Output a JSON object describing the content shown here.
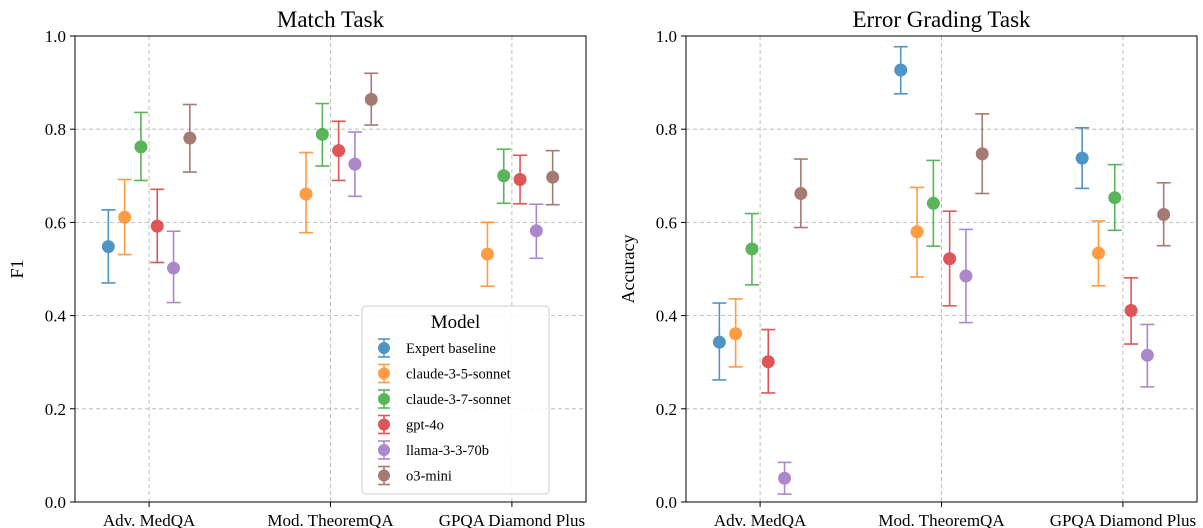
{
  "chart_data": [
    {
      "type": "scatter",
      "title": "Match Task",
      "xlabel": "",
      "ylabel": "F1",
      "ylim": [
        0.0,
        1.0
      ],
      "yticks": [
        "0.0",
        "0.2",
        "0.4",
        "0.6",
        "0.8",
        "1.0"
      ],
      "categories": [
        "Adv. MedQA",
        "Mod. TheoremQA",
        "GPQA Diamond Plus"
      ],
      "grid": true,
      "legend": {
        "title": "Model",
        "placement": "lower-right",
        "entries": [
          "Expert baseline",
          "claude-3-5-sonnet",
          "claude-3-7-sonnet",
          "gpt-4o",
          "llama-3-3-70b",
          "o3-mini"
        ]
      },
      "series": [
        {
          "name": "Expert baseline",
          "color": "#1f77b4",
          "points": [
            {
              "category": "Adv. MedQA",
              "y": 0.548,
              "low": 0.47,
              "high": 0.627
            }
          ]
        },
        {
          "name": "claude-3-5-sonnet",
          "color": "#ff7f0e",
          "points": [
            {
              "category": "Adv. MedQA",
              "y": 0.611,
              "low": 0.531,
              "high": 0.692
            },
            {
              "category": "Mod. TheoremQA",
              "y": 0.661,
              "low": 0.578,
              "high": 0.75
            },
            {
              "category": "GPQA Diamond Plus",
              "y": 0.532,
              "low": 0.463,
              "high": 0.6
            }
          ]
        },
        {
          "name": "claude-3-7-sonnet",
          "color": "#2ca02c",
          "points": [
            {
              "category": "Adv. MedQA",
              "y": 0.762,
              "low": 0.69,
              "high": 0.836
            },
            {
              "category": "Mod. TheoremQA",
              "y": 0.789,
              "low": 0.721,
              "high": 0.855
            },
            {
              "category": "GPQA Diamond Plus",
              "y": 0.7,
              "low": 0.641,
              "high": 0.757
            }
          ]
        },
        {
          "name": "gpt-4o",
          "color": "#d62728",
          "points": [
            {
              "category": "Adv. MedQA",
              "y": 0.592,
              "low": 0.514,
              "high": 0.671
            },
            {
              "category": "Mod. TheoremQA",
              "y": 0.754,
              "low": 0.69,
              "high": 0.817
            },
            {
              "category": "GPQA Diamond Plus",
              "y": 0.692,
              "low": 0.64,
              "high": 0.744
            }
          ]
        },
        {
          "name": "llama-3-3-70b",
          "color": "#9467bd",
          "points": [
            {
              "category": "Adv. MedQA",
              "y": 0.502,
              "low": 0.428,
              "high": 0.581
            },
            {
              "category": "Mod. TheoremQA",
              "y": 0.725,
              "low": 0.656,
              "high": 0.794
            },
            {
              "category": "GPQA Diamond Plus",
              "y": 0.582,
              "low": 0.523,
              "high": 0.639
            }
          ]
        },
        {
          "name": "o3-mini",
          "color": "#8c564b",
          "points": [
            {
              "category": "Adv. MedQA",
              "y": 0.781,
              "low": 0.708,
              "high": 0.853
            },
            {
              "category": "Mod. TheoremQA",
              "y": 0.864,
              "low": 0.809,
              "high": 0.92
            },
            {
              "category": "GPQA Diamond Plus",
              "y": 0.697,
              "low": 0.638,
              "high": 0.754
            }
          ]
        }
      ]
    },
    {
      "type": "scatter",
      "title": "Error Grading Task",
      "xlabel": "",
      "ylabel": "Accuracy",
      "ylim": [
        0.0,
        1.0
      ],
      "yticks": [
        "0.0",
        "0.2",
        "0.4",
        "0.6",
        "0.8",
        "1.0"
      ],
      "categories": [
        "Adv. MedQA",
        "Mod. TheoremQA",
        "GPQA Diamond Plus"
      ],
      "grid": true,
      "series": [
        {
          "name": "Expert baseline",
          "color": "#1f77b4",
          "points": [
            {
              "category": "Adv. MedQA",
              "y": 0.343,
              "low": 0.262,
              "high": 0.427
            },
            {
              "category": "Mod. TheoremQA",
              "y": 0.927,
              "low": 0.876,
              "high": 0.977
            },
            {
              "category": "GPQA Diamond Plus",
              "y": 0.738,
              "low": 0.673,
              "high": 0.803
            }
          ]
        },
        {
          "name": "claude-3-5-sonnet",
          "color": "#ff7f0e",
          "points": [
            {
              "category": "Adv. MedQA",
              "y": 0.361,
              "low": 0.29,
              "high": 0.436
            },
            {
              "category": "Mod. TheoremQA",
              "y": 0.58,
              "low": 0.483,
              "high": 0.675
            },
            {
              "category": "GPQA Diamond Plus",
              "y": 0.534,
              "low": 0.464,
              "high": 0.603
            }
          ]
        },
        {
          "name": "claude-3-7-sonnet",
          "color": "#2ca02c",
          "points": [
            {
              "category": "Adv. MedQA",
              "y": 0.543,
              "low": 0.466,
              "high": 0.619
            },
            {
              "category": "Mod. TheoremQA",
              "y": 0.641,
              "low": 0.549,
              "high": 0.733
            },
            {
              "category": "GPQA Diamond Plus",
              "y": 0.653,
              "low": 0.583,
              "high": 0.724
            }
          ]
        },
        {
          "name": "gpt-4o",
          "color": "#d62728",
          "points": [
            {
              "category": "Adv. MedQA",
              "y": 0.301,
              "low": 0.234,
              "high": 0.37
            },
            {
              "category": "Mod. TheoremQA",
              "y": 0.522,
              "low": 0.421,
              "high": 0.624
            },
            {
              "category": "GPQA Diamond Plus",
              "y": 0.411,
              "low": 0.339,
              "high": 0.481
            }
          ]
        },
        {
          "name": "llama-3-3-70b",
          "color": "#9467bd",
          "points": [
            {
              "category": "Adv. MedQA",
              "y": 0.051,
              "low": 0.017,
              "high": 0.085
            },
            {
              "category": "Mod. TheoremQA",
              "y": 0.485,
              "low": 0.385,
              "high": 0.585
            },
            {
              "category": "GPQA Diamond Plus",
              "y": 0.315,
              "low": 0.247,
              "high": 0.381
            }
          ]
        },
        {
          "name": "o3-mini",
          "color": "#8c564b",
          "points": [
            {
              "category": "Adv. MedQA",
              "y": 0.662,
              "low": 0.589,
              "high": 0.736
            },
            {
              "category": "Mod. TheoremQA",
              "y": 0.747,
              "low": 0.662,
              "high": 0.833
            },
            {
              "category": "GPQA Diamond Plus",
              "y": 0.617,
              "low": 0.55,
              "high": 0.685
            }
          ]
        }
      ]
    }
  ]
}
